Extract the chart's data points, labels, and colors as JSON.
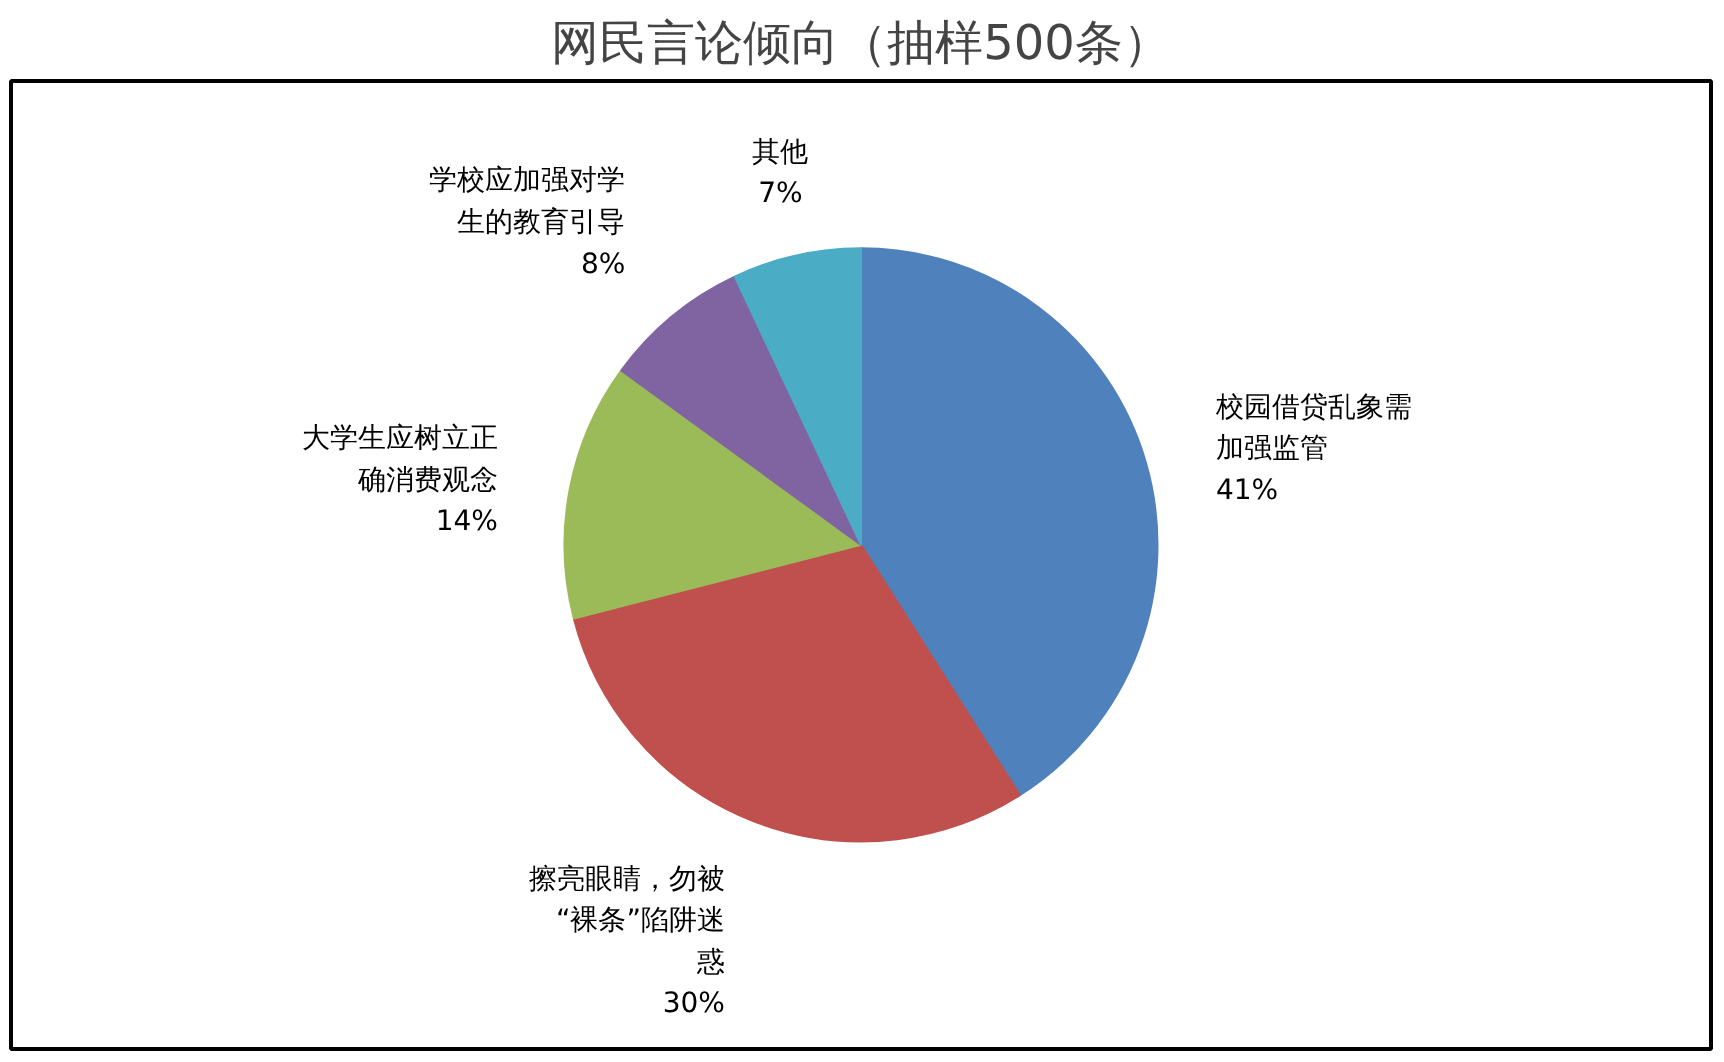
{
  "chart_data": {
    "type": "pie",
    "title": "网民言论倾向（抽样500条）",
    "categories": [
      "校园借贷乱象需加强监管",
      "擦亮眼睛，勿被“裸条”陷阱迷惑",
      "大学生应树立正确消费观念",
      "学校应加强对学生的教育引导",
      "其他"
    ],
    "values": [
      41,
      30,
      14,
      8,
      7
    ],
    "colors": [
      "#4f81bd",
      "#c0504d",
      "#9bbb59",
      "#8064a2",
      "#4bacc6"
    ],
    "value_labels": [
      "41%",
      "30%",
      "14%",
      "8%",
      "7%"
    ]
  }
}
